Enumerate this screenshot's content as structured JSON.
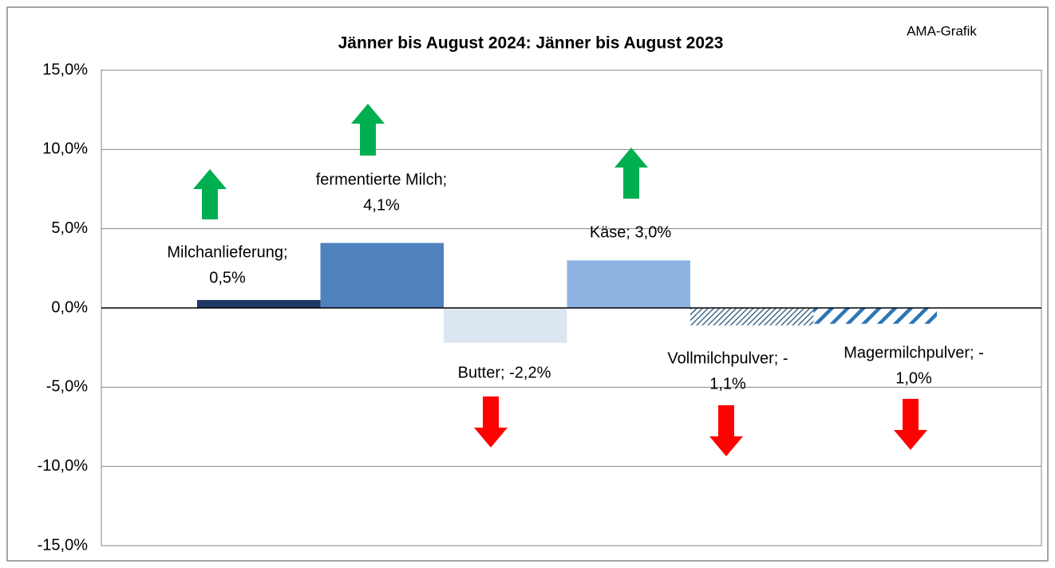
{
  "chart_data": {
    "type": "bar",
    "title": "Jänner bis August 2024: Jänner bis August 2023",
    "annotation": "AMA-Grafik",
    "categories": [
      "Milchanlieferung",
      "fermentierte Milch",
      "Butter",
      "Käse",
      "Vollmilchpulver",
      "Magermilchpulver"
    ],
    "values": [
      0.5,
      4.1,
      -2.2,
      3.0,
      -1.1,
      -1.0
    ],
    "value_labels": [
      [
        "Milchanlieferung;",
        "0,5%"
      ],
      [
        "fermentierte Milch;",
        "4,1%"
      ],
      [
        "Butter; -2,2%"
      ],
      [
        "Käse; 3,0%"
      ],
      [
        "Vollmilchpulver; -",
        "1,1%"
      ],
      [
        "Magermilchpulver; -",
        "1,0%"
      ]
    ],
    "colors": [
      "#1f3864",
      "#4f81bd",
      "#dce6f1",
      "#8db3e2",
      "#1f4e79",
      "#2e75b6"
    ],
    "patterns": [
      "solid",
      "solid",
      "solid",
      "solid",
      "fine-hatch",
      "stripes"
    ],
    "ylim": [
      -15,
      15
    ],
    "yticks": [
      {
        "value": -15,
        "label": "-15,0%"
      },
      {
        "value": -10,
        "label": "-10,0%"
      },
      {
        "value": -5,
        "label": "-5,0%"
      },
      {
        "value": 0,
        "label": "0,0%"
      },
      {
        "value": 5,
        "label": "5,0%"
      },
      {
        "value": 10,
        "label": "10,0%"
      },
      {
        "value": 15,
        "label": "15,0%"
      }
    ],
    "grid": true
  }
}
